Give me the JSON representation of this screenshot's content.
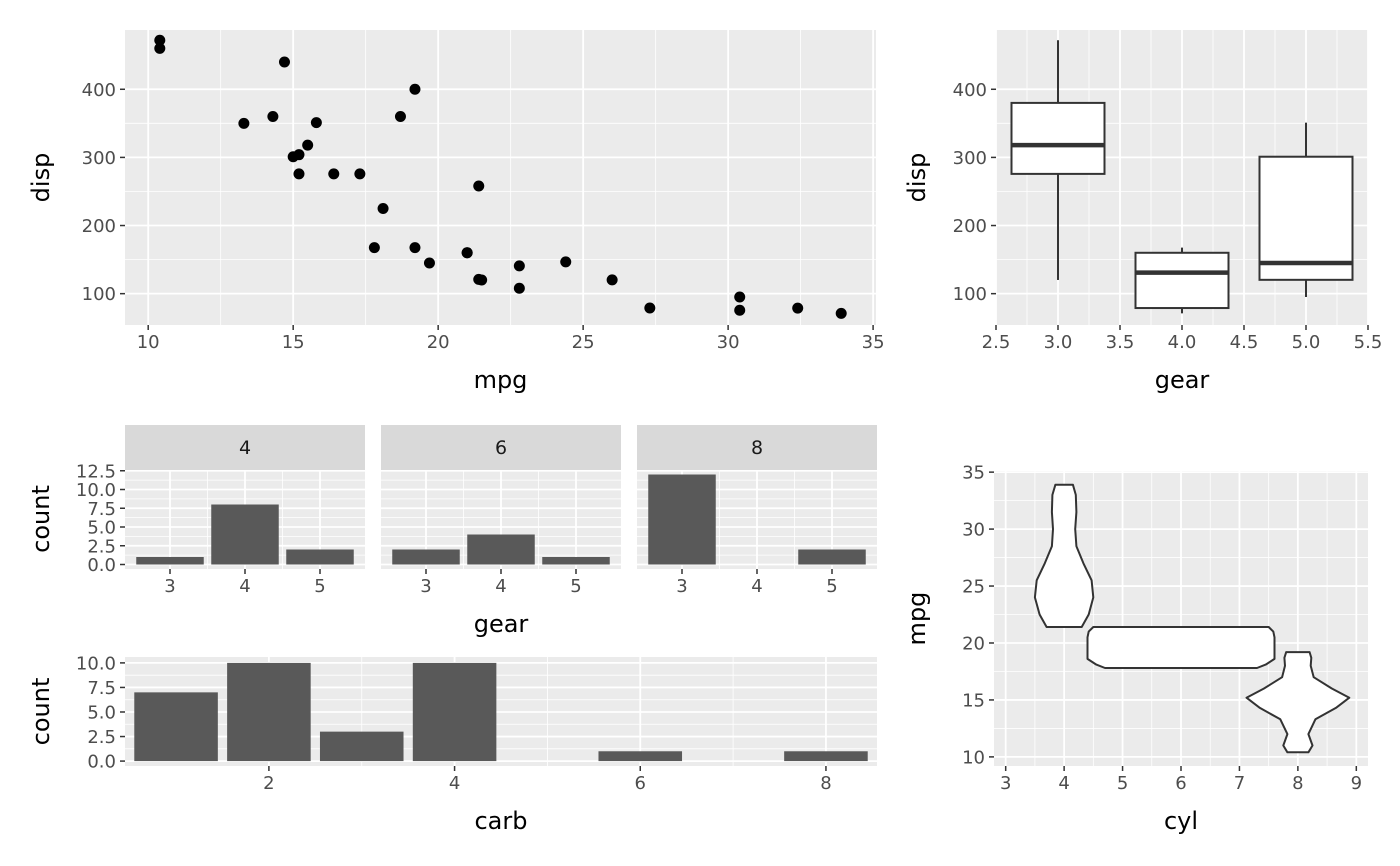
{
  "colors": {
    "panel_bg": "#ebebeb",
    "grid": "#ffffff",
    "strip_bg": "#d9d9d9",
    "bar_fill": "#595959",
    "point": "#000000",
    "outline": "#333333",
    "tick": "#333333"
  },
  "chart_data": [
    {
      "id": "scatter",
      "type": "scatter",
      "xlabel": "mpg",
      "ylabel": "disp",
      "xlim": [
        9.2,
        35.1
      ],
      "ylim": [
        54,
        487
      ],
      "xticks": [
        10,
        15,
        20,
        25,
        30,
        35
      ],
      "yticks": [
        100,
        200,
        300,
        400
      ],
      "x": [
        21.0,
        21.0,
        22.8,
        21.4,
        18.7,
        18.1,
        14.3,
        24.4,
        22.8,
        19.2,
        17.8,
        16.4,
        17.3,
        15.2,
        10.4,
        10.4,
        14.7,
        32.4,
        30.4,
        33.9,
        21.5,
        15.5,
        15.2,
        13.3,
        19.2,
        27.3,
        26.0,
        30.4,
        15.8,
        19.7,
        15.0,
        21.4
      ],
      "y": [
        160,
        160,
        108,
        258,
        360,
        225,
        360,
        146.7,
        140.8,
        167.6,
        167.6,
        275.8,
        275.8,
        275.8,
        472,
        460,
        440,
        78.7,
        75.7,
        71.1,
        120.1,
        318,
        304,
        350,
        400,
        79,
        120.3,
        95.1,
        351,
        145,
        301,
        121
      ]
    },
    {
      "id": "boxplot",
      "type": "boxplot",
      "xlabel": "gear",
      "ylabel": "disp",
      "xlim": [
        2.5,
        5.5
      ],
      "ylim": [
        54,
        487
      ],
      "xticks": [
        "2.5",
        "3.0",
        "3.5",
        "4.0",
        "4.5",
        "5.0",
        "5.5"
      ],
      "yticks": [
        100,
        200,
        300,
        400
      ],
      "groups": [
        {
          "x": 3,
          "min": 120.1,
          "q1": 275.8,
          "median": 318,
          "q3": 380,
          "max": 472
        },
        {
          "x": 4,
          "min": 71.1,
          "q1": 78.9,
          "median": 130.9,
          "q3": 160,
          "max": 167.6
        },
        {
          "x": 5,
          "min": 95.1,
          "q1": 120.3,
          "median": 145,
          "q3": 301,
          "max": 351
        }
      ]
    },
    {
      "id": "faceted-bars",
      "type": "bar",
      "xlabel": "gear",
      "ylabel": "count",
      "ylim": [
        -0.6,
        12.6
      ],
      "xlim": [
        2.4,
        5.6
      ],
      "categories": [
        "3",
        "4",
        "5"
      ],
      "yticks": [
        "0.0",
        "2.5",
        "5.0",
        "7.5",
        "10.0",
        "12.5"
      ],
      "facets": [
        {
          "label": "4",
          "values": [
            1,
            8,
            2
          ]
        },
        {
          "label": "6",
          "values": [
            2,
            4,
            1
          ]
        },
        {
          "label": "8",
          "values": [
            12,
            0,
            2
          ]
        }
      ]
    },
    {
      "id": "carb-bars",
      "type": "bar",
      "xlabel": "carb",
      "ylabel": "count",
      "xlim": [
        0.45,
        8.55
      ],
      "ylim": [
        -0.5,
        10.6
      ],
      "x": [
        1,
        2,
        3,
        4,
        6,
        8
      ],
      "values": [
        7,
        10,
        3,
        10,
        1,
        1
      ],
      "xticks": [
        2,
        4,
        6,
        8
      ],
      "yticks": [
        "0.0",
        "2.5",
        "5.0",
        "7.5",
        "10.0"
      ]
    },
    {
      "id": "violin",
      "type": "violin",
      "xlabel": "cyl",
      "ylabel": "mpg",
      "xlim": [
        2.8,
        9.2
      ],
      "ylim": [
        9.2,
        35.1
      ],
      "xticks": [
        3,
        4,
        5,
        6,
        7,
        8,
        9
      ],
      "yticks": [
        10,
        15,
        20,
        25,
        30,
        35
      ],
      "groups": [
        {
          "x": 4,
          "min": 21.4,
          "max": 33.9,
          "profile": [
            [
              21.4,
              0.3
            ],
            [
              22.5,
              0.42
            ],
            [
              24,
              0.5
            ],
            [
              25.5,
              0.47
            ],
            [
              27,
              0.33
            ],
            [
              28.5,
              0.21
            ],
            [
              30,
              0.19
            ],
            [
              31.5,
              0.21
            ],
            [
              33,
              0.2
            ],
            [
              33.9,
              0.15
            ]
          ]
        },
        {
          "x": 6,
          "min": 17.8,
          "max": 21.4,
          "profile": [
            [
              17.8,
              1.3
            ],
            [
              18.1,
              1.45
            ],
            [
              18.6,
              1.6
            ],
            [
              19.5,
              1.6
            ],
            [
              20.5,
              1.6
            ],
            [
              21.0,
              1.58
            ],
            [
              21.4,
              1.5
            ]
          ]
        },
        {
          "x": 8,
          "min": 10.4,
          "max": 19.2,
          "profile": [
            [
              10.4,
              0.18
            ],
            [
              11,
              0.25
            ],
            [
              12,
              0.18
            ],
            [
              13.3,
              0.3
            ],
            [
              14.3,
              0.65
            ],
            [
              15.2,
              0.88
            ],
            [
              16,
              0.58
            ],
            [
              17,
              0.27
            ],
            [
              18,
              0.22
            ],
            [
              18.7,
              0.23
            ],
            [
              19.2,
              0.2
            ]
          ]
        }
      ]
    }
  ]
}
